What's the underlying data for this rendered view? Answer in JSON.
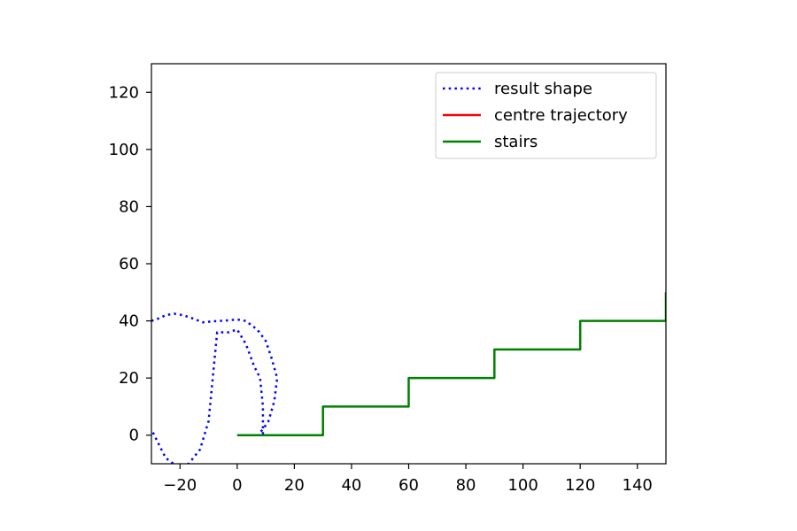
{
  "chart_data": {
    "type": "line",
    "title": "",
    "xlabel": "",
    "ylabel": "",
    "xlim": [
      -30,
      150
    ],
    "ylim": [
      -10,
      130
    ],
    "xticks": [
      -20,
      0,
      20,
      40,
      60,
      80,
      100,
      120,
      140
    ],
    "yticks": [
      0,
      20,
      40,
      60,
      80,
      100,
      120
    ],
    "xtick_labels": [
      "−20",
      "0",
      "20",
      "40",
      "60",
      "80",
      "100",
      "120",
      "140"
    ],
    "ytick_labels": [
      "0",
      "20",
      "40",
      "60",
      "80",
      "100",
      "120"
    ],
    "grid": false,
    "legend_position": "top-right",
    "series": [
      {
        "name": "result shape",
        "color": "#0000ff",
        "style": "dotted",
        "x": [
          -30,
          -27,
          -25,
          -22,
          -19,
          -16,
          -12,
          -9,
          -6,
          -3,
          0,
          3,
          7,
          10,
          12,
          14,
          13,
          11,
          9,
          8,
          9,
          9,
          8,
          6,
          3,
          0,
          -3,
          -7,
          -10,
          -13,
          -17,
          -21,
          -25,
          -29,
          -30
        ],
        "y": [
          40,
          41,
          42,
          42.5,
          42,
          41,
          39.5,
          39.8,
          40,
          40.2,
          40.5,
          40,
          37,
          33,
          27,
          20,
          12,
          5,
          2,
          1,
          0.5,
          10,
          20,
          24,
          32,
          37,
          36,
          36,
          5,
          -5,
          -10,
          -11,
          -8,
          0,
          2
        ]
      },
      {
        "name": "centre trajectory",
        "color": "#ff0000",
        "style": "solid",
        "x": [],
        "y": []
      },
      {
        "name": "stairs",
        "color": "#008000",
        "style": "solid",
        "x": [
          0,
          30,
          30,
          60,
          60,
          90,
          90,
          120,
          120,
          150,
          150
        ],
        "y": [
          0,
          0,
          10,
          10,
          20,
          20,
          30,
          30,
          40,
          40,
          50
        ]
      }
    ]
  }
}
